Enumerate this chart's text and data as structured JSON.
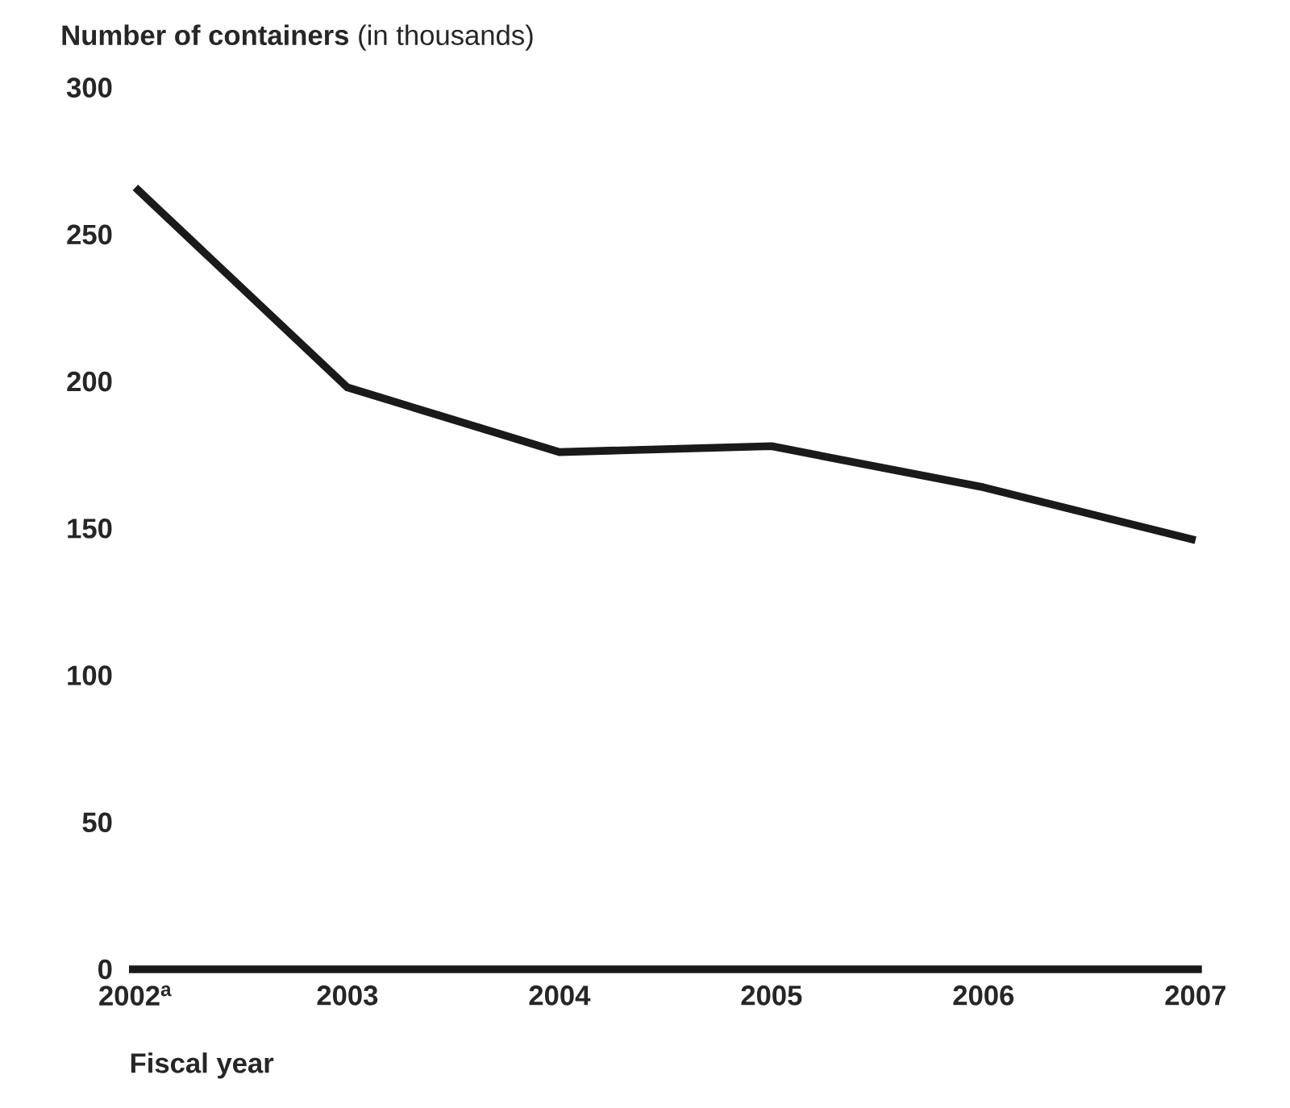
{
  "chart_data": {
    "type": "line",
    "title": "**Number of containers** (in thousands)",
    "xlabel": "Fiscal year",
    "categories": [
      "2002$^{a}$",
      "2003",
      "2004",
      "2005",
      "2006",
      "2007"
    ],
    "series": [
      {
        "color": "#1a1a1a",
        "values": [
          266,
          198,
          176,
          178,
          164,
          146
        ]
      }
    ],
    "ylim": [
      0,
      300
    ],
    "yticks": [
      0,
      50,
      100,
      150,
      200,
      250,
      300
    ]
  }
}
